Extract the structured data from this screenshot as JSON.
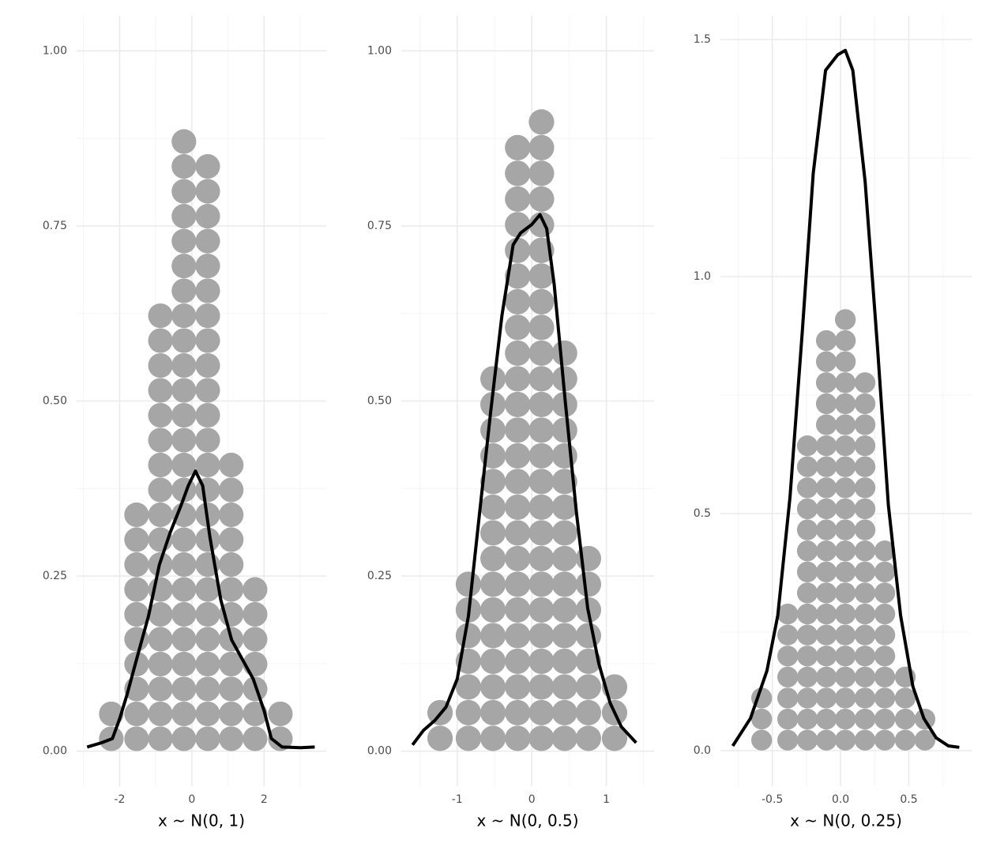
{
  "chart_data": [
    {
      "type": "dotplot",
      "xlabel": "x ~ N(0, 1)",
      "x": [
        -2.23,
        -1.53,
        -0.87,
        -0.22,
        0.44,
        1.09,
        1.75,
        2.45
      ],
      "values": [
        2,
        10,
        18,
        25,
        24,
        12,
        7,
        2
      ],
      "color": "#a6a6a6",
      "density": {
        "color": "#000000",
        "x": [
          -2.9,
          -2.5,
          -2.2,
          -2.0,
          -1.8,
          -1.5,
          -1.2,
          -0.9,
          -0.6,
          -0.3,
          -0.1,
          0.1,
          0.3,
          0.5,
          0.8,
          1.1,
          1.4,
          1.7,
          2.0,
          2.2,
          2.5,
          3.0,
          3.4
        ],
        "y": [
          0.006,
          0.012,
          0.018,
          0.046,
          0.08,
          0.137,
          0.193,
          0.266,
          0.312,
          0.351,
          0.379,
          0.4,
          0.379,
          0.306,
          0.216,
          0.159,
          0.131,
          0.103,
          0.058,
          0.018,
          0.006,
          0.005,
          0.006
        ]
      },
      "xlim": [
        -3.19,
        3.72
      ],
      "ylim": [
        -0.05,
        1.05
      ],
      "xticks": [
        -2,
        0,
        2
      ],
      "yticks": [
        {
          "value": 0,
          "label": "0.00"
        },
        {
          "value": 0.25,
          "label": "0.25"
        },
        {
          "value": 0.5,
          "label": "0.50"
        },
        {
          "value": 0.75,
          "label": "0.75"
        },
        {
          "value": 1,
          "label": "1.00"
        }
      ],
      "grid": true
    },
    {
      "type": "dotplot",
      "xlabel": "x ~ N(0, 0.5)",
      "x": [
        -1.23,
        -0.85,
        -0.52,
        -0.19,
        0.13,
        0.44,
        0.76,
        1.11
      ],
      "values": [
        2,
        7,
        15,
        24,
        25,
        16,
        8,
        3
      ],
      "color": "#a6a6a6",
      "density": {
        "color": "#000000",
        "x": [
          -1.6,
          -1.45,
          -1.3,
          -1.15,
          -1.0,
          -0.85,
          -0.7,
          -0.55,
          -0.4,
          -0.25,
          -0.15,
          0.0,
          0.11,
          0.2,
          0.3,
          0.45,
          0.6,
          0.75,
          0.9,
          1.05,
          1.2,
          1.4
        ],
        "y": [
          0.009,
          0.03,
          0.044,
          0.063,
          0.103,
          0.193,
          0.34,
          0.486,
          0.622,
          0.723,
          0.74,
          0.752,
          0.766,
          0.746,
          0.667,
          0.498,
          0.34,
          0.204,
          0.125,
          0.069,
          0.035,
          0.012
        ]
      },
      "xlim": [
        -1.75,
        1.64
      ],
      "ylim": [
        -0.05,
        1.05
      ],
      "xticks": [
        -1,
        0,
        1
      ],
      "yticks": [
        {
          "value": 0,
          "label": "0.00"
        },
        {
          "value": 0.25,
          "label": "0.25"
        },
        {
          "value": 0.5,
          "label": "0.50"
        },
        {
          "value": 0.75,
          "label": "0.75"
        },
        {
          "value": 1,
          "label": "1.00"
        }
      ],
      "grid": true
    },
    {
      "type": "dotplot",
      "xlabel": "x ~ N(0, 0.25)",
      "x": [
        -0.578,
        -0.387,
        -0.243,
        -0.104,
        0.035,
        0.179,
        0.324,
        0.474,
        0.618
      ],
      "values": [
        3,
        7,
        15,
        20,
        21,
        18,
        10,
        4,
        2
      ],
      "color": "#a6a6a6",
      "density": {
        "color": "#000000",
        "x": [
          -0.79,
          -0.66,
          -0.54,
          -0.46,
          -0.37,
          -0.28,
          -0.2,
          -0.11,
          -0.02,
          0.035,
          0.09,
          0.18,
          0.27,
          0.35,
          0.44,
          0.53,
          0.61,
          0.7,
          0.79,
          0.87
        ],
        "y": [
          0.01,
          0.068,
          0.168,
          0.285,
          0.535,
          0.885,
          1.218,
          1.435,
          1.468,
          1.477,
          1.435,
          1.2,
          0.852,
          0.518,
          0.285,
          0.135,
          0.068,
          0.027,
          0.01,
          0.007
        ]
      },
      "xlim": [
        -0.88,
        0.96
      ],
      "ylim": [
        -0.075,
        1.55
      ],
      "xticks": [
        -0.5,
        {
          "value": 0,
          "label": "0.0"
        },
        0.5
      ],
      "yticks": [
        {
          "value": 0,
          "label": "0.0"
        },
        {
          "value": 0.5,
          "label": "0.5"
        },
        {
          "value": 1,
          "label": "1.0"
        },
        {
          "value": 1.5,
          "label": "1.5"
        }
      ],
      "grid": true
    }
  ]
}
